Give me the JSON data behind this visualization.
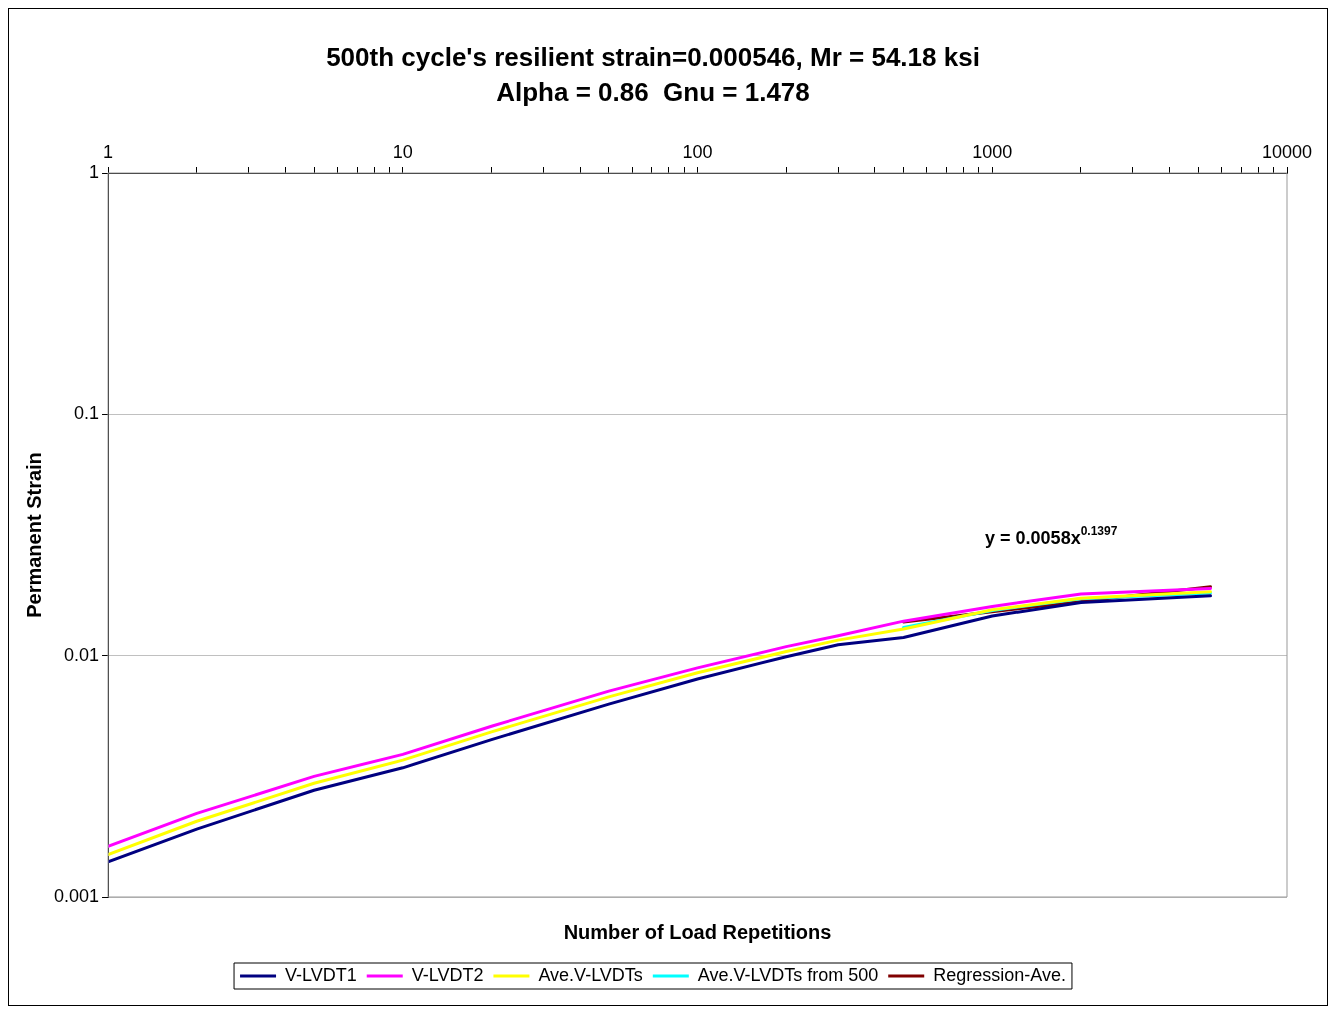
{
  "chart_data": {
    "type": "line",
    "title": "500th cycle's resilient strain=0.000546, Mr = 54.18 ksi",
    "subtitle": "Alpha = 0.86  Gnu = 1.478",
    "xlabel": "Number of Load Repetitions",
    "ylabel": "Permanent Strain",
    "log": "xy",
    "grid": "y",
    "legend": "bottom",
    "marker": "none",
    "line_style": "solid",
    "xlim": [
      1,
      10000
    ],
    "ylim": [
      0.001,
      1
    ],
    "xticks": [
      1,
      {
        "value": 2,
        "label": null
      },
      {
        "value": 3,
        "label": null
      },
      {
        "value": 4,
        "label": null
      },
      {
        "value": 5,
        "label": null
      },
      {
        "value": 6,
        "label": null
      },
      {
        "value": 7,
        "label": null
      },
      {
        "value": 8,
        "label": null
      },
      {
        "value": 9,
        "label": null
      },
      10,
      {
        "value": 20,
        "label": null
      },
      {
        "value": 30,
        "label": null
      },
      {
        "value": 40,
        "label": null
      },
      {
        "value": 50,
        "label": null
      },
      {
        "value": 60,
        "label": null
      },
      {
        "value": 70,
        "label": null
      },
      {
        "value": 80,
        "label": null
      },
      {
        "value": 90,
        "label": null
      },
      100,
      {
        "value": 200,
        "label": null
      },
      {
        "value": 300,
        "label": null
      },
      {
        "value": 400,
        "label": null
      },
      {
        "value": 500,
        "label": null
      },
      {
        "value": 600,
        "label": null
      },
      {
        "value": 700,
        "label": null
      },
      {
        "value": 800,
        "label": null
      },
      {
        "value": 900,
        "label": null
      },
      1000,
      {
        "value": 2000,
        "label": null
      },
      {
        "value": 3000,
        "label": null
      },
      {
        "value": 4000,
        "label": null
      },
      {
        "value": 5000,
        "label": null
      },
      {
        "value": 6000,
        "label": null
      },
      {
        "value": 7000,
        "label": null
      },
      {
        "value": 8000,
        "label": null
      },
      {
        "value": 9000,
        "label": null
      },
      10000
    ],
    "yticks": [
      1,
      0.1,
      0.01,
      0.001
    ],
    "series": [
      {
        "name": "V-LVDT1",
        "color": "#000080",
        "x": [
          1,
          2,
          5,
          10,
          20,
          50,
          100,
          200,
          300,
          500,
          1000,
          2000,
          5500
        ],
        "values": [
          0.0014,
          0.00191,
          0.00277,
          0.00343,
          0.00449,
          0.0063,
          0.008,
          0.0099,
          0.0111,
          0.0119,
          0.0146,
          0.0166,
          0.0177
        ]
      },
      {
        "name": "V-LVDT2",
        "color": "#ff00ff",
        "x": [
          1,
          2,
          5,
          10,
          20,
          50,
          100,
          200,
          300,
          500,
          1000,
          2000,
          5500
        ],
        "values": [
          0.00162,
          0.00222,
          0.00316,
          0.0039,
          0.0051,
          0.00713,
          0.0089,
          0.0109,
          0.0121,
          0.0139,
          0.016,
          0.018,
          0.019
        ]
      },
      {
        "name": "Ave.V-LVDTs",
        "color": "#ffff00",
        "x": [
          1,
          2,
          5,
          10,
          20,
          50,
          100,
          200,
          300,
          500,
          1000,
          2000,
          5500
        ],
        "values": [
          0.0015,
          0.00206,
          0.00296,
          0.00369,
          0.00483,
          0.00675,
          0.0085,
          0.0104,
          0.0116,
          0.0129,
          0.0155,
          0.0173,
          0.0184
        ]
      },
      {
        "name": "Ave.V-LVDTs from 500",
        "color": "#00ffff",
        "x": [
          500,
          1000,
          2000,
          5500
        ],
        "values": [
          0.0131,
          0.0154,
          0.0172,
          0.0182
        ]
      },
      {
        "name": "Regression-Ave.",
        "color": "#800000",
        "x": [
          500,
          5500
        ],
        "values": [
          0.0138,
          0.0193
        ]
      }
    ],
    "annotations": [
      "y = 0.0058x$^{0.1397}$"
    ]
  }
}
